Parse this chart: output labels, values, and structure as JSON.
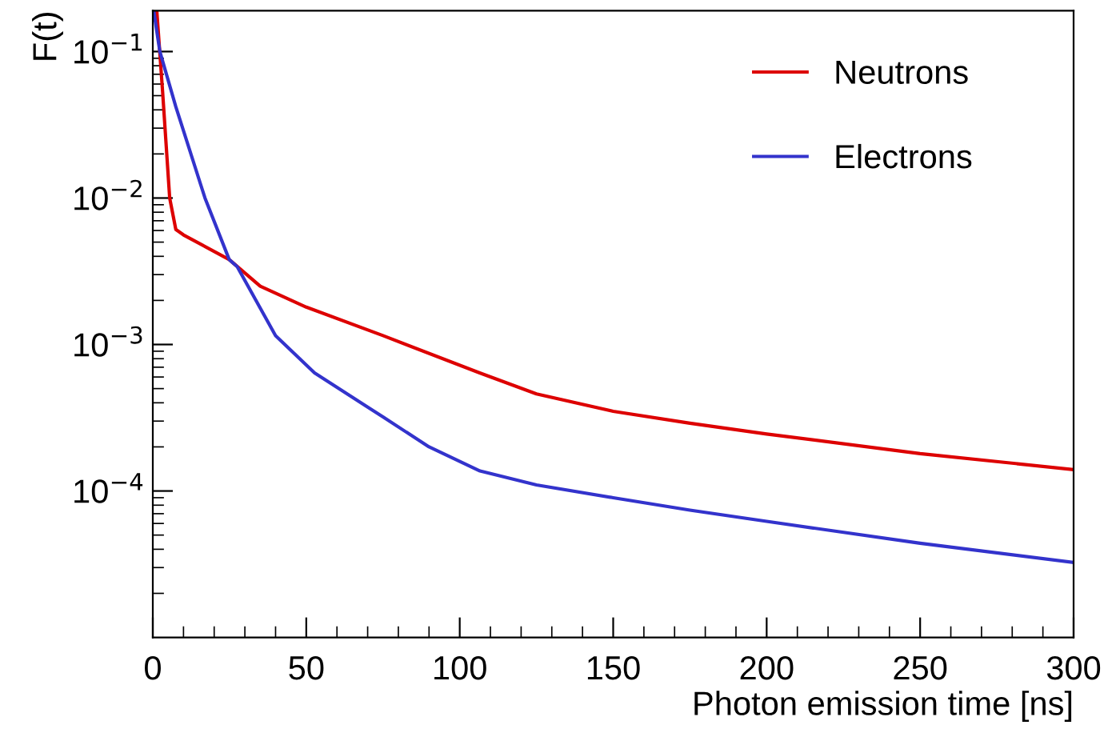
{
  "chart_data": {
    "type": "line",
    "xlabel": "Photon emission time [ns]",
    "ylabel": "F(t)",
    "log": "y",
    "xlim": [
      0,
      300
    ],
    "ylim": [
      1e-05,
      0.19
    ],
    "xticks": [
      0,
      50,
      100,
      150,
      200,
      250,
      300
    ],
    "yticks": [
      {
        "value": 0.1,
        "label": "10$^{−1}$"
      },
      {
        "value": 0.01,
        "label": "10$^{−2}$"
      },
      {
        "value": 0.001,
        "label": "10$^{−3}$"
      },
      {
        "value": 0.0001,
        "label": "10$^{−4}$"
      }
    ],
    "grid": false,
    "legend": "top right",
    "marker": "none",
    "line_style": "solid",
    "series": [
      {
        "name": "Neutrons",
        "color": "#dd0000",
        "x": [
          1.3,
          3.2,
          5.5,
          7.5,
          10,
          24.9,
          35,
          50,
          75,
          106.5,
          125,
          150,
          175,
          200,
          250,
          300
        ],
        "values": [
          0.19,
          0.053,
          0.01,
          0.0061,
          0.0056,
          0.0038,
          0.0025,
          0.0018,
          0.00115,
          0.00064,
          0.00046,
          0.00035,
          0.00029,
          0.000245,
          0.00018,
          0.00014
        ]
      },
      {
        "name": "Electrons",
        "color": "#3333cc",
        "x": [
          0.3,
          2.3,
          7.5,
          17,
          24.9,
          27.5,
          40,
          52.7,
          75,
          90,
          106.6,
          125,
          150,
          175,
          200,
          250,
          300
        ],
        "values": [
          0.19,
          0.1,
          0.042,
          0.01,
          0.0038,
          0.0034,
          0.00115,
          0.00064,
          0.00032,
          0.0002,
          0.000137,
          0.00011,
          9e-05,
          7.4e-05,
          6.2e-05,
          4.4e-05,
          3.25e-05
        ]
      }
    ]
  }
}
